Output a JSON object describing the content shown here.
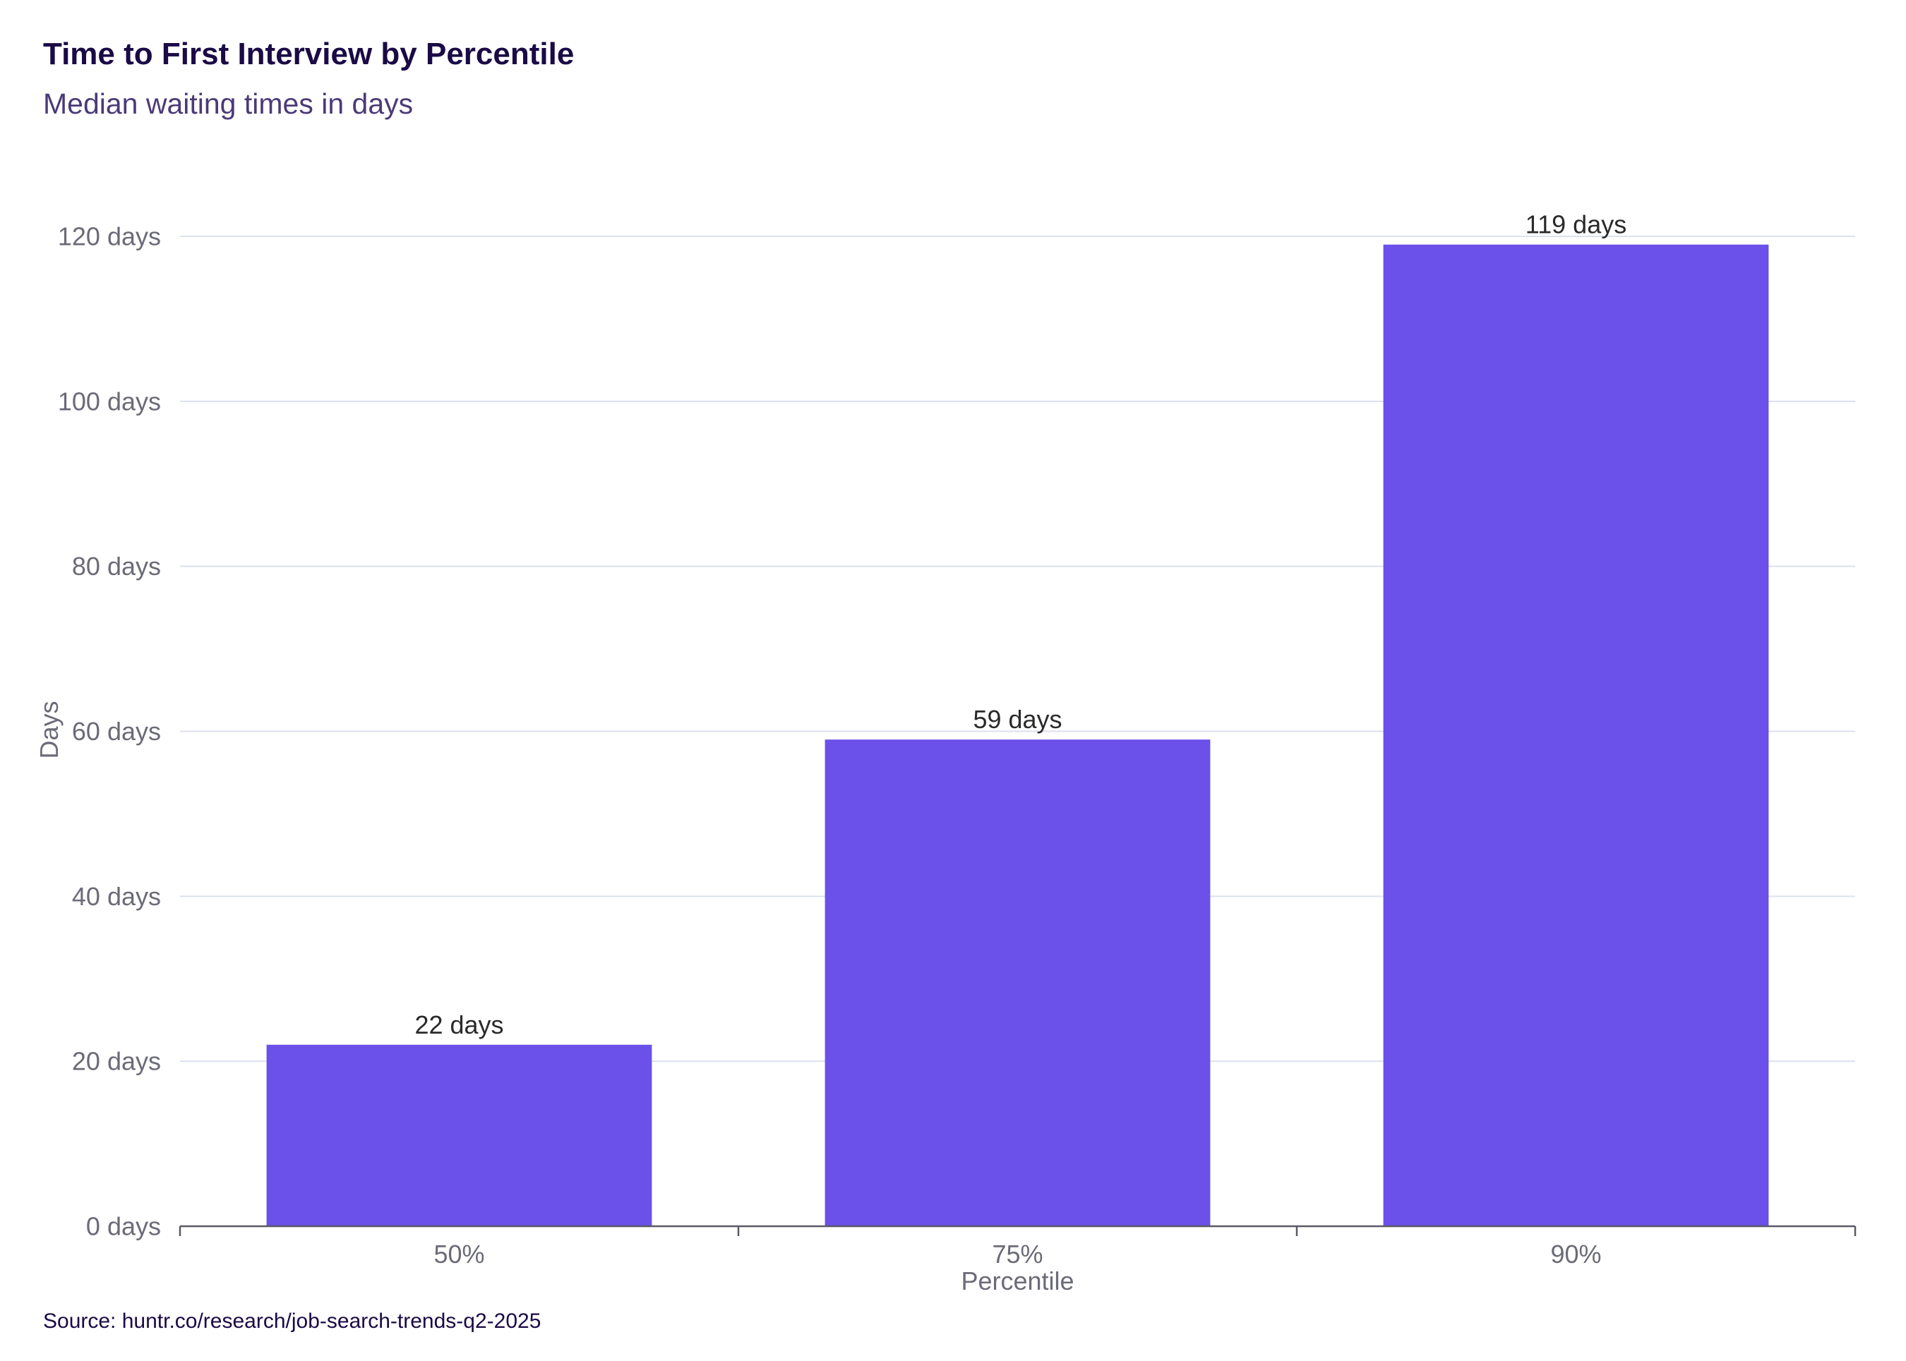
{
  "header": {
    "title": "Time to First Interview by Percentile",
    "subtitle": "Median waiting times in days"
  },
  "footer": {
    "source": "Source: huntr.co/research/job-search-trends-q2-2025"
  },
  "colors": {
    "bar": "#6b50e9",
    "grid": "#dde1ee",
    "axis": "#5a5a66"
  },
  "chart_data": {
    "type": "bar",
    "categories": [
      "50%",
      "75%",
      "90%"
    ],
    "values": [
      22,
      59,
      119
    ],
    "data_labels": [
      "22 days",
      "59 days",
      "119 days"
    ],
    "xlabel": "Percentile",
    "ylabel": "Days",
    "ylim": [
      0,
      120
    ],
    "yticks": [
      0,
      20,
      40,
      60,
      80,
      100,
      120
    ],
    "ytick_labels": [
      "0 days",
      "20 days",
      "40 days",
      "60 days",
      "80 days",
      "100 days",
      "120 days"
    ],
    "grid": true,
    "legend": false
  }
}
